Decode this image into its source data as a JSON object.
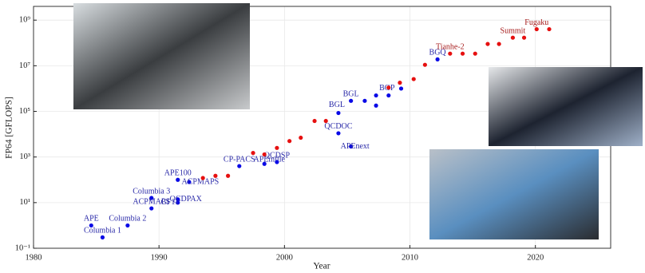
{
  "chart_data": {
    "type": "scatter",
    "ylog": true,
    "grid": true,
    "xlabel": "Year",
    "ylabel": "FP64 [GFLOPS]",
    "xlim": [
      1980,
      2026
    ],
    "xticks": [
      1980,
      1990,
      2000,
      2010,
      2020
    ],
    "ylim": [
      0.1,
      4000000000
    ],
    "yticks": [
      {
        "value": 0.1,
        "label": "10⁻¹"
      },
      {
        "value": 10,
        "label": "10¹"
      },
      {
        "value": 1000,
        "label": "10³"
      },
      {
        "value": 100000,
        "label": "10⁵"
      },
      {
        "value": 10000000,
        "label": "10⁷"
      },
      {
        "value": 1000000000,
        "label": "10⁹"
      }
    ],
    "series": [
      {
        "color": "#0a0ae6",
        "label_color": "#2a2aa8",
        "x": [
          1984.6,
          1985.5,
          1987.5,
          1989.4,
          1989.4,
          1991.5,
          1991.5,
          1991.5,
          1992.4,
          1996.4,
          1998.4,
          1999.4,
          2004.3,
          2005.3,
          2004.3,
          2005.3,
          2006.4,
          2007.3,
          2007.3,
          2008.3,
          2009.3,
          2012.2
        ],
        "values": [
          1,
          0.3,
          1,
          16,
          5.6,
          10,
          14,
          100,
          80,
          400,
          500,
          600,
          11000,
          2900,
          85000,
          290000,
          290000,
          500000,
          180000,
          500000,
          1000000,
          19000000
        ],
        "labels": [
          "APE",
          "Columbia 1",
          "Columbia 2",
          "Columbia 3",
          "ACPMAPS",
          "GF11",
          "QCDPAX",
          "APE100",
          "ACPMAPS",
          "CP-PACS",
          "APEmille",
          "QCDSP",
          "QCDOC",
          "APEnext",
          "BGL",
          "BGL",
          null,
          null,
          null,
          "BGP",
          null,
          "BGQ"
        ]
      },
      {
        "color": "#e61010",
        "label_color": "#a82020",
        "x": [
          1993.5,
          1994.5,
          1995.5,
          1997.5,
          1998.4,
          1999.4,
          2000.4,
          2001.3,
          2002.4,
          2003.3,
          2008.3,
          2009.2,
          2010.3,
          2011.2,
          2013.2,
          2014.2,
          2015.2,
          2016.2,
          2017.1,
          2018.2,
          2019.1,
          2020.1,
          2021.1
        ],
        "values": [
          120,
          150,
          150,
          1500,
          1300,
          2500,
          5000,
          7000,
          38000,
          38000,
          1100000,
          1800000,
          2600000,
          11000000,
          34000000,
          34000000,
          34000000,
          90000000,
          90000000,
          170000000,
          170000000,
          400000000,
          400000000
        ],
        "labels": [
          null,
          null,
          null,
          null,
          null,
          null,
          null,
          null,
          null,
          null,
          null,
          null,
          null,
          null,
          "Tianhe-2",
          null,
          null,
          null,
          null,
          "Summit",
          null,
          "Fugaku",
          null
        ]
      }
    ]
  }
}
